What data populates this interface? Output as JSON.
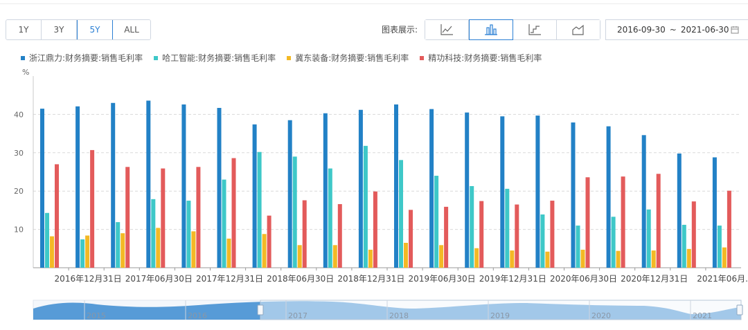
{
  "toolbar": {
    "ranges": [
      "1Y",
      "3Y",
      "5Y",
      "ALL"
    ],
    "active_range": "5Y",
    "chart_type_label": "图表展示:",
    "chart_types": [
      "line-chart-icon",
      "bar-chart-icon",
      "step-chart-icon",
      "area-chart-icon"
    ],
    "active_chart_type": "bar-chart-icon",
    "date_start": "2016-09-30",
    "date_sep": "~",
    "date_end": "2021-06-30"
  },
  "colors": {
    "series": [
      "#2281c6",
      "#3ec8c8",
      "#f3b925",
      "#e35b5b"
    ],
    "accent": "#2a7fd4"
  },
  "chart_data": {
    "type": "bar",
    "ylabel": "%",
    "ylim": [
      0,
      50
    ],
    "yticks": [
      10,
      20,
      30,
      40
    ],
    "grid": true,
    "legend_position": "top-left",
    "categories": [
      "2016-09-30",
      "2016-12-31",
      "2017-03-31",
      "2017-06-30",
      "2017-09-30",
      "2017-12-31",
      "2018-03-31",
      "2018-06-30",
      "2018-09-30",
      "2018-12-31",
      "2019-03-31",
      "2019-06-30",
      "2019-09-30",
      "2019-12-31",
      "2020-03-31",
      "2020-06-30",
      "2020-09-30",
      "2020-12-31",
      "2021-03-31",
      "2021-06-30"
    ],
    "tick_labels": [
      "2016年12月31日",
      "2017年06月30日",
      "2017年12月31日",
      "2018年06月30日",
      "2018年12月31日",
      "2019年06月30日",
      "2019年12月31日",
      "2020年06月30日",
      "2020年12月31日",
      "2021年06月..."
    ],
    "series": [
      {
        "name": "浙江鼎力:财务摘要:销售毛利率",
        "values": [
          41.5,
          42.1,
          43.0,
          43.6,
          42.6,
          41.7,
          37.4,
          38.5,
          40.3,
          41.2,
          42.6,
          41.4,
          40.5,
          39.5,
          39.7,
          37.9,
          36.9,
          34.6,
          29.8,
          28.8
        ]
      },
      {
        "name": "哈工智能:财务摘要:销售毛利率",
        "values": [
          14.3,
          7.4,
          11.9,
          17.9,
          17.5,
          23.0,
          30.2,
          29.0,
          25.9,
          31.8,
          28.1,
          24.0,
          21.3,
          20.6,
          13.9,
          11.0,
          13.3,
          15.2,
          11.2,
          11.0
        ]
      },
      {
        "name": "冀东装备:财务摘要:销售毛利率",
        "values": [
          8.2,
          8.4,
          9.0,
          10.4,
          9.5,
          7.6,
          8.8,
          5.9,
          5.9,
          4.7,
          6.5,
          5.9,
          5.1,
          4.5,
          4.2,
          4.7,
          4.4,
          4.5,
          4.9,
          5.3
        ]
      },
      {
        "name": "精功科技:财务摘要:销售毛利率",
        "values": [
          27.0,
          30.7,
          26.3,
          25.9,
          26.3,
          28.6,
          13.6,
          17.6,
          16.6,
          19.9,
          15.1,
          15.9,
          17.4,
          16.5,
          17.5,
          23.6,
          23.8,
          24.5,
          17.3,
          20.1
        ]
      }
    ]
  },
  "navigator": {
    "year_labels": [
      "2015",
      "2016",
      "2017",
      "2018",
      "2019",
      "2020",
      "2021"
    ]
  }
}
